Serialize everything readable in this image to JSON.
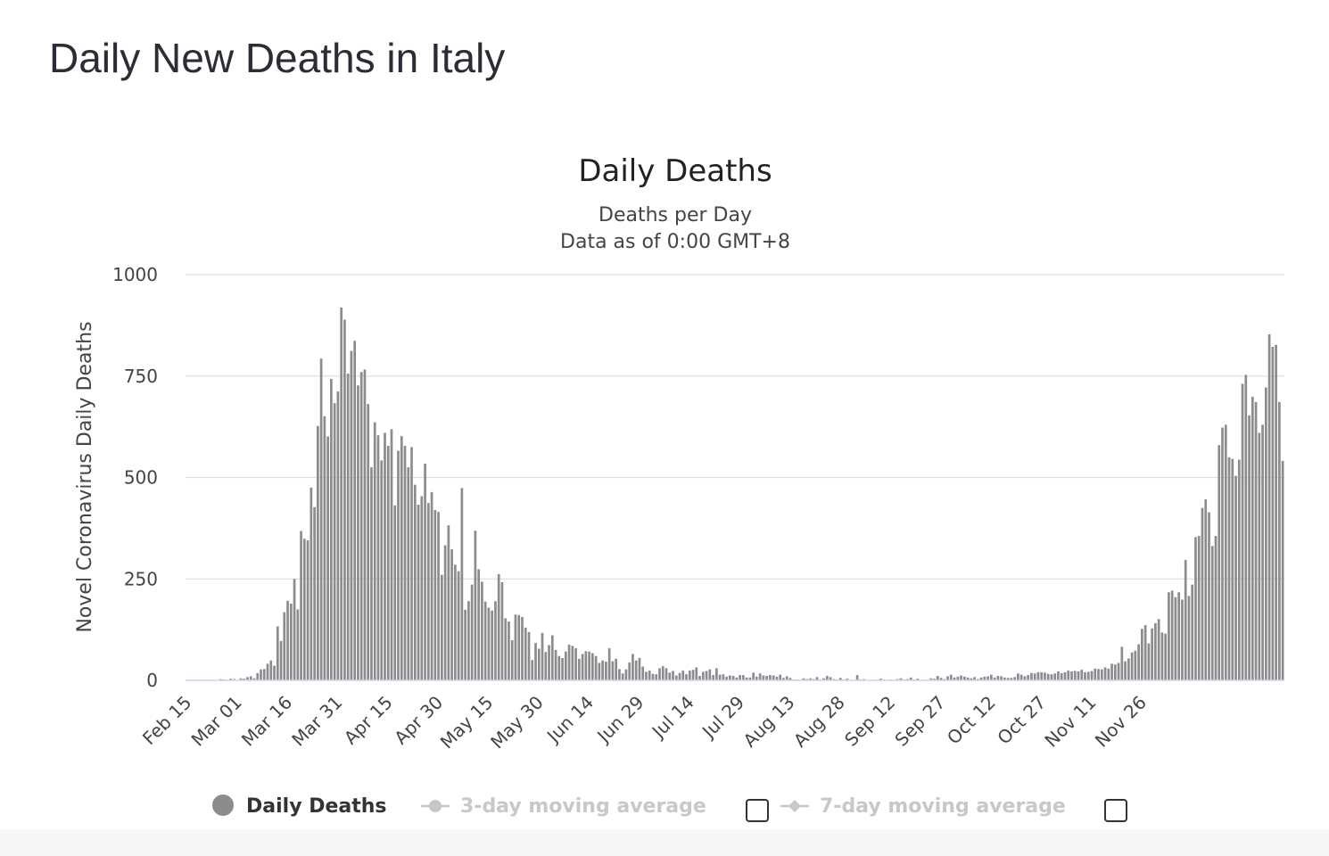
{
  "page": {
    "title": "Daily New Deaths in Italy"
  },
  "colors": {
    "bar": "#8c8c8c",
    "grid": "#e0e0e0",
    "axis_line": "#ccd6eb",
    "legend_disabled": "#c8c8c8"
  },
  "legend": {
    "items": [
      {
        "label": "Daily Deaths",
        "marker": "circle",
        "enabled": true
      },
      {
        "label": "3-day moving average",
        "marker": "line-circle",
        "enabled": false,
        "has_checkbox": true
      },
      {
        "label": "7-day moving average",
        "marker": "line-diamond",
        "enabled": false,
        "has_checkbox": true
      }
    ]
  },
  "chart_data": {
    "type": "bar",
    "title": "Daily Deaths",
    "subtitle_lines": [
      "Deaths per Day",
      "Data as of 0:00 GMT+8"
    ],
    "ylabel": "Novel Coronavirus Daily Deaths",
    "xlabel": "",
    "ylim": [
      0,
      1000
    ],
    "yticks": [
      0,
      250,
      500,
      750,
      1000
    ],
    "grid": true,
    "x_tick_labels": [
      "Feb 15",
      "Mar 01",
      "Mar 16",
      "Mar 31",
      "Apr 15",
      "Apr 30",
      "May 15",
      "May 30",
      "Jun 14",
      "Jun 29",
      "Jul 14",
      "Jul 29",
      "Aug 13",
      "Aug 28",
      "Sep 12",
      "Sep 27",
      "Oct 12",
      "Oct 27",
      "Nov 11",
      "Nov 26"
    ],
    "x_start": "Feb 15",
    "x_end": "Dec 01",
    "series": [
      {
        "name": "Daily Deaths",
        "values": [
          0,
          0,
          0,
          0,
          0,
          0,
          0,
          1,
          1,
          0,
          3,
          2,
          1,
          4,
          3,
          0,
          5,
          4,
          8,
          10,
          5,
          18,
          27,
          28,
          41,
          49,
          36,
          133,
          97,
          168,
          196,
          189,
          250,
          175,
          368,
          349,
          345,
          475,
          427,
          627,
          793,
          651,
          601,
          743,
          683,
          712,
          919,
          889,
          756,
          812,
          837,
          727,
          760,
          766,
          681,
          525,
          636,
          604,
          542,
          610,
          578,
          619,
          431,
          566,
          602,
          578,
          525,
          575,
          482,
          433,
          454,
          534,
          437,
          464,
          420,
          415,
          260,
          333,
          382,
          323,
          285,
          269,
          474,
          174,
          195,
          236,
          369,
          274,
          243,
          194,
          179,
          172,
          195,
          262,
          242,
          153,
          145,
          99,
          162,
          161,
          156,
          130,
          119,
          50,
          92,
          78,
          117,
          70,
          87,
          111,
          75,
          60,
          55,
          71,
          88,
          85,
          79,
          53,
          65,
          72,
          71,
          67,
          60,
          43,
          49,
          46,
          79,
          47,
          53,
          28,
          17,
          27,
          44,
          65,
          49,
          55,
          34,
          21,
          24,
          16,
          15,
          30,
          35,
          30,
          19,
          23,
          12,
          18,
          24,
          15,
          24,
          26,
          32,
          11,
          21,
          23,
          27,
          13,
          30,
          14,
          15,
          9,
          12,
          11,
          7,
          13,
          13,
          7,
          7,
          19,
          9,
          17,
          12,
          11,
          13,
          12,
          9,
          14,
          6,
          10,
          6,
          2,
          2,
          1,
          5,
          3,
          5,
          3,
          8,
          2,
          5,
          11,
          8,
          3,
          2,
          6,
          2,
          4,
          1,
          1,
          13,
          2,
          3,
          1,
          1,
          1,
          1,
          4,
          2,
          1,
          2,
          1,
          3,
          5,
          2,
          3,
          7,
          2,
          4,
          1,
          1,
          1,
          5,
          4,
          11,
          6,
          3,
          10,
          14,
          7,
          9,
          12,
          9,
          7,
          5,
          8,
          3,
          7,
          9,
          10,
          14,
          7,
          11,
          10,
          7,
          6,
          6,
          8,
          17,
          14,
          10,
          13,
          18,
          17,
          20,
          20,
          19,
          16,
          15,
          17,
          22,
          18,
          20,
          24,
          22,
          23,
          22,
          26,
          20,
          21,
          23,
          29,
          28,
          27,
          32,
          29,
          41,
          39,
          43,
          83,
          47,
          54,
          69,
          73,
          89,
          127,
          136,
          91,
          128,
          141,
          151,
          118,
          115,
          217,
          221,
          205,
          217,
          199,
          297,
          208,
          236,
          353,
          356,
          425,
          446,
          414,
          331,
          356,
          580,
          623,
          630,
          550,
          546,
          504,
          544,
          731,
          753,
          653,
          699,
          686,
          610,
          630,
          722,
          853,
          822,
          827,
          686,
          541
        ]
      }
    ]
  }
}
